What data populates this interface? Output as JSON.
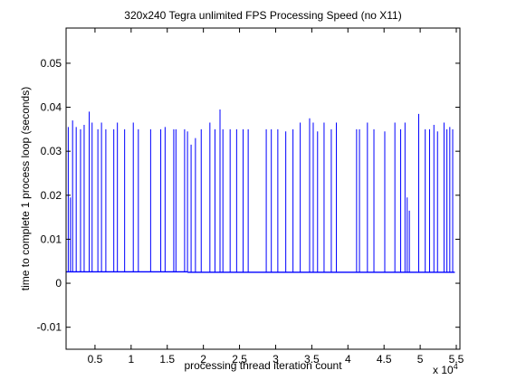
{
  "chart_data": {
    "type": "line",
    "title": "320x240 Tegra unlimited FPS Processing Speed (no X11)",
    "xlabel": "processing thread iteration count",
    "ylabel": "time to complete 1 process loop (seconds)",
    "x_multiplier_label": "x 10",
    "x_multiplier_exponent": "4",
    "xlim": [
      1000,
      55500
    ],
    "ylim": [
      -0.015,
      0.058
    ],
    "grid": false,
    "x_ticks": [
      5000,
      10000,
      15000,
      20000,
      25000,
      30000,
      35000,
      40000,
      45000,
      50000,
      55000
    ],
    "x_tick_labels": [
      "0.5",
      "1",
      "1.5",
      "2",
      "2.5",
      "3",
      "3.5",
      "4",
      "4.5",
      "5",
      "5.5"
    ],
    "y_ticks": [
      -0.01,
      0,
      0.01,
      0.02,
      0.03,
      0.04,
      0.05
    ],
    "y_tick_labels": [
      "-0.01",
      "0",
      "0.01",
      "0.02",
      "0.03",
      "0.04",
      "0.05"
    ],
    "line_color": "#0000ff",
    "series": [
      {
        "baseline_segments": [
          {
            "x_start": 1000,
            "x_end": 17800,
            "y": 0.0026
          },
          {
            "x_start": 17800,
            "x_end": 54800,
            "y": 0.0025
          }
        ],
        "spikes": [
          {
            "x": 1300,
            "y": 0.0355
          },
          {
            "x": 1600,
            "y": 0.0195
          },
          {
            "x": 1900,
            "y": 0.037
          },
          {
            "x": 2400,
            "y": 0.0355
          },
          {
            "x": 3000,
            "y": 0.035
          },
          {
            "x": 3500,
            "y": 0.036
          },
          {
            "x": 4200,
            "y": 0.039
          },
          {
            "x": 4600,
            "y": 0.0365
          },
          {
            "x": 5400,
            "y": 0.035
          },
          {
            "x": 5900,
            "y": 0.0365
          },
          {
            "x": 6500,
            "y": 0.035
          },
          {
            "x": 7600,
            "y": 0.035
          },
          {
            "x": 8100,
            "y": 0.0365
          },
          {
            "x": 9100,
            "y": 0.035
          },
          {
            "x": 10300,
            "y": 0.0365
          },
          {
            "x": 11000,
            "y": 0.035
          },
          {
            "x": 12700,
            "y": 0.035
          },
          {
            "x": 14100,
            "y": 0.035
          },
          {
            "x": 14700,
            "y": 0.0355
          },
          {
            "x": 15900,
            "y": 0.035
          },
          {
            "x": 16200,
            "y": 0.035
          },
          {
            "x": 17400,
            "y": 0.035
          },
          {
            "x": 17800,
            "y": 0.0345
          },
          {
            "x": 18300,
            "y": 0.0315
          },
          {
            "x": 18900,
            "y": 0.033
          },
          {
            "x": 19700,
            "y": 0.035
          },
          {
            "x": 20900,
            "y": 0.0365
          },
          {
            "x": 21600,
            "y": 0.035
          },
          {
            "x": 22300,
            "y": 0.0395
          },
          {
            "x": 22700,
            "y": 0.035
          },
          {
            "x": 23700,
            "y": 0.035
          },
          {
            "x": 24600,
            "y": 0.035
          },
          {
            "x": 25500,
            "y": 0.035
          },
          {
            "x": 26200,
            "y": 0.035
          },
          {
            "x": 28700,
            "y": 0.035
          },
          {
            "x": 29400,
            "y": 0.035
          },
          {
            "x": 30300,
            "y": 0.035
          },
          {
            "x": 31400,
            "y": 0.0345
          },
          {
            "x": 32400,
            "y": 0.035
          },
          {
            "x": 33400,
            "y": 0.0365
          },
          {
            "x": 34700,
            "y": 0.0375
          },
          {
            "x": 35200,
            "y": 0.0365
          },
          {
            "x": 35800,
            "y": 0.0345
          },
          {
            "x": 36700,
            "y": 0.0365
          },
          {
            "x": 37700,
            "y": 0.035
          },
          {
            "x": 38400,
            "y": 0.0365
          },
          {
            "x": 41200,
            "y": 0.035
          },
          {
            "x": 41600,
            "y": 0.035
          },
          {
            "x": 42700,
            "y": 0.0365
          },
          {
            "x": 43600,
            "y": 0.035
          },
          {
            "x": 45100,
            "y": 0.0345
          },
          {
            "x": 46500,
            "y": 0.0365
          },
          {
            "x": 47300,
            "y": 0.035
          },
          {
            "x": 47900,
            "y": 0.0365
          },
          {
            "x": 48200,
            "y": 0.0195
          },
          {
            "x": 48500,
            "y": 0.0165
          },
          {
            "x": 49800,
            "y": 0.0385
          },
          {
            "x": 50700,
            "y": 0.035
          },
          {
            "x": 51300,
            "y": 0.035
          },
          {
            "x": 51900,
            "y": 0.036
          },
          {
            "x": 52400,
            "y": 0.0345
          },
          {
            "x": 53300,
            "y": 0.0365
          },
          {
            "x": 53700,
            "y": 0.035
          },
          {
            "x": 54100,
            "y": 0.0355
          },
          {
            "x": 54500,
            "y": 0.035
          }
        ]
      }
    ]
  }
}
